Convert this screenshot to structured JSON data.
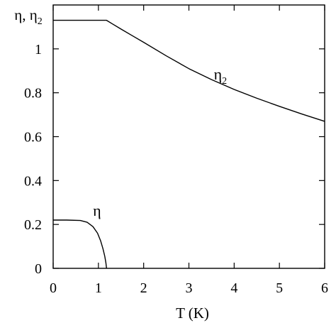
{
  "chart_data": {
    "type": "line",
    "xlabel": "T (K)",
    "ylabel": "η, η₂",
    "ylabel_main": "η, η",
    "ylabel_sub": "2",
    "xlim": [
      0,
      6
    ],
    "ylim": [
      0,
      1.2
    ],
    "x_ticks": [
      0,
      1,
      2,
      3,
      4,
      5,
      6
    ],
    "y_ticks": [
      0,
      0.2,
      0.4,
      0.6,
      0.8,
      1
    ],
    "x_tick_labels": [
      "0",
      "1",
      "2",
      "3",
      "4",
      "5",
      "6"
    ],
    "y_tick_labels": [
      "0",
      "0.2",
      "0.4",
      "0.6",
      "0.8",
      "1"
    ],
    "grid": false,
    "series": [
      {
        "name": "η₂",
        "label_main": "η",
        "label_sub": "2",
        "label_at": [
          3.55,
          0.86
        ],
        "x": [
          0,
          0.5,
          1.0,
          1.18,
          1.3,
          1.5,
          1.75,
          2.0,
          2.5,
          3.0,
          3.5,
          4.0,
          4.5,
          5.0,
          5.5,
          6.0
        ],
        "y": [
          1.13,
          1.13,
          1.13,
          1.13,
          1.115,
          1.09,
          1.06,
          1.03,
          0.968,
          0.91,
          0.86,
          0.815,
          0.775,
          0.738,
          0.703,
          0.67
        ]
      },
      {
        "name": "η",
        "label_main": "η",
        "label_sub": "",
        "label_at": [
          0.88,
          0.24
        ],
        "x": [
          0,
          0.3,
          0.6,
          0.75,
          0.88,
          0.98,
          1.05,
          1.1,
          1.14,
          1.165,
          1.18
        ],
        "y": [
          0.22,
          0.22,
          0.218,
          0.21,
          0.19,
          0.16,
          0.125,
          0.09,
          0.055,
          0.025,
          0.0
        ]
      }
    ]
  }
}
